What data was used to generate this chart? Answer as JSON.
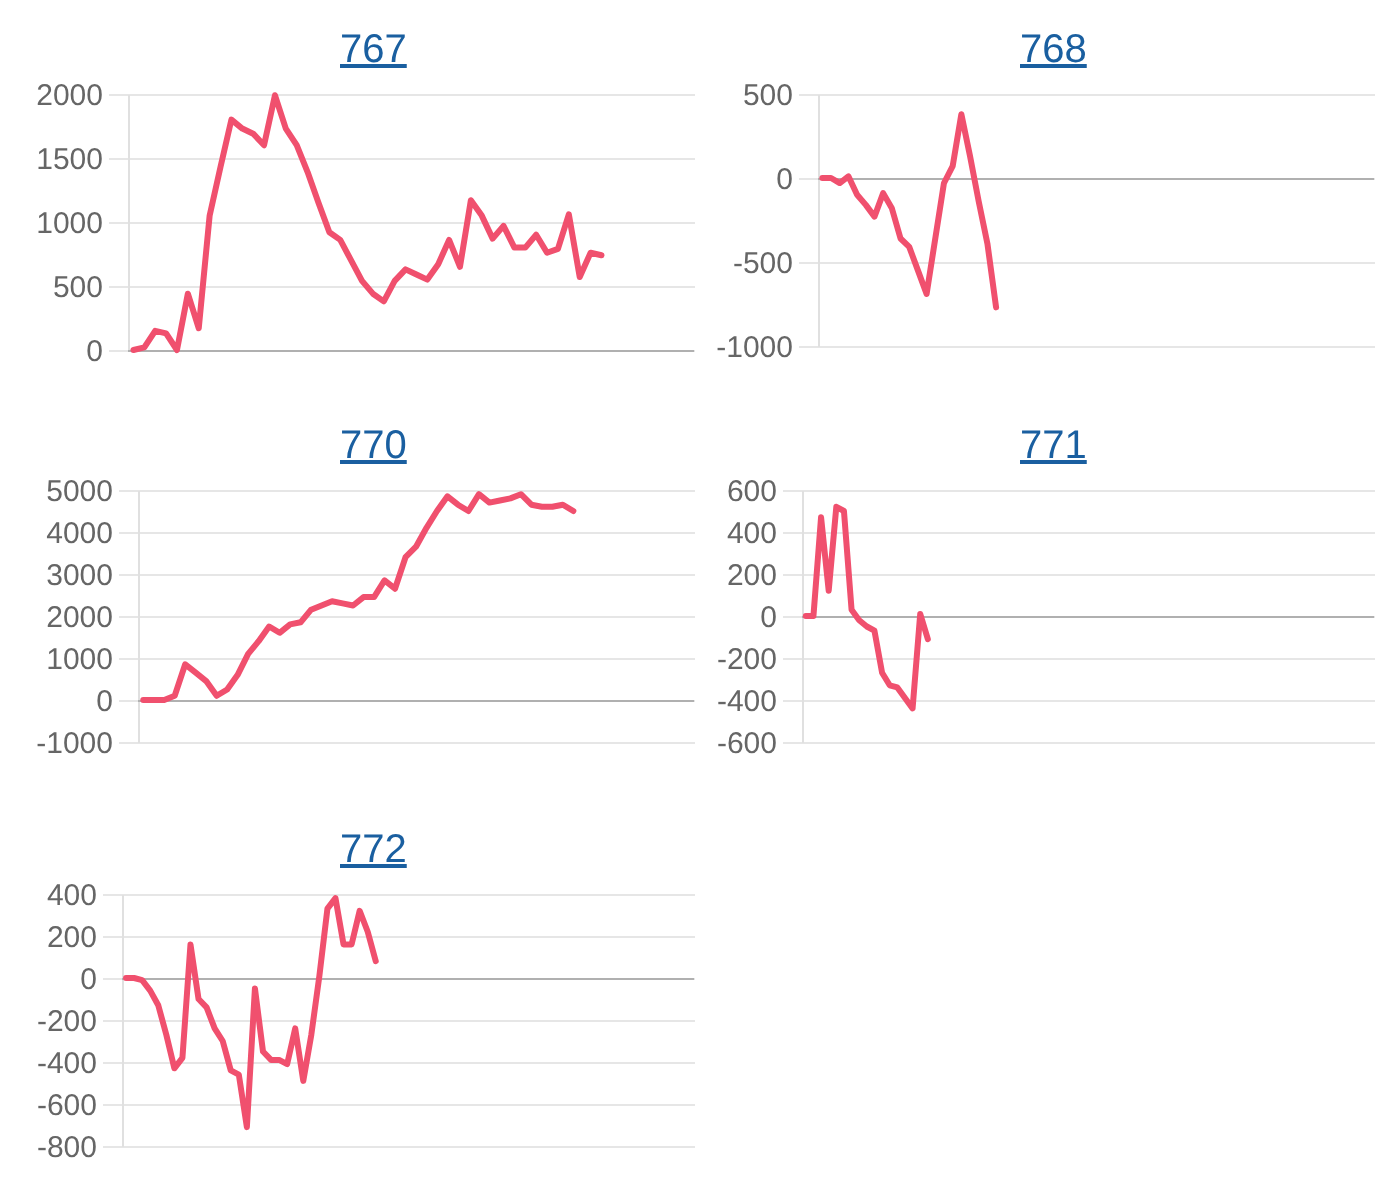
{
  "chart_data": [
    {
      "type": "line",
      "title": "767",
      "color": "#f0506e",
      "grid": "y",
      "tick_labels": "y",
      "ylim": [
        0,
        2000
      ],
      "yticks": [
        0,
        500,
        1000,
        1500,
        2000
      ],
      "ref_lines": [
        {
          "axis": "y",
          "value": 0,
          "color": "#b0b0b0"
        }
      ],
      "categories": [
        null,
        null,
        null,
        null,
        null,
        null,
        null,
        null,
        null,
        null,
        null,
        null,
        null,
        null,
        null,
        null,
        null,
        null,
        null,
        null,
        null,
        null,
        null,
        null,
        null,
        null,
        null,
        null,
        null,
        null,
        null,
        null,
        null,
        null,
        null,
        null,
        null,
        null,
        null,
        null,
        null,
        null,
        null,
        null,
        null,
        null,
        null,
        null,
        null,
        null,
        null,
        null
      ],
      "values": [
        0,
        20,
        150,
        130,
        0,
        440,
        170,
        1050,
        1430,
        1800,
        1730,
        1690,
        1600,
        1990,
        1730,
        1600,
        1390,
        1150,
        920,
        860,
        700,
        540,
        440,
        380,
        540,
        630,
        590,
        550,
        670,
        860,
        650,
        1170,
        1050,
        870,
        970,
        800,
        800,
        900,
        760,
        790,
        1060,
        570,
        760,
        740,
        null,
        null,
        null,
        null,
        null,
        null,
        null,
        null
      ]
    },
    {
      "type": "line",
      "title": "768",
      "color": "#f0506e",
      "grid": "y",
      "tick_labels": "y",
      "ylim": [
        -1000,
        500
      ],
      "yticks": [
        -1000,
        -500,
        0,
        500
      ],
      "ref_lines": [
        {
          "axis": "y",
          "value": 0,
          "color": "#b0b0b0"
        }
      ],
      "categories": [
        null,
        null,
        null,
        null,
        null,
        null,
        null,
        null,
        null,
        null,
        null,
        null,
        null,
        null,
        null,
        null,
        null,
        null,
        null,
        null,
        null,
        null,
        null,
        null,
        null,
        null,
        null,
        null,
        null,
        null,
        null,
        null,
        null,
        null,
        null,
        null,
        null,
        null,
        null,
        null,
        null,
        null,
        null,
        null,
        null,
        null,
        null,
        null,
        null,
        null,
        null,
        null,
        null,
        null,
        null,
        null,
        null,
        null,
        null,
        null,
        null,
        null,
        null,
        null
      ],
      "values": [
        0,
        0,
        -30,
        10,
        -100,
        -160,
        -230,
        -90,
        -180,
        -360,
        -410,
        -550,
        -690,
        -360,
        -30,
        70,
        380,
        130,
        -140,
        -390,
        -770,
        null,
        null,
        null,
        null,
        null,
        null,
        null,
        null,
        null,
        null,
        null,
        null,
        null,
        null,
        null,
        null,
        null,
        null,
        null,
        null,
        null,
        null,
        null,
        null,
        null,
        null,
        null,
        null,
        null,
        null,
        null,
        null,
        null,
        null,
        null,
        null,
        null,
        null,
        null,
        null,
        null,
        null,
        null
      ]
    },
    {
      "type": "line",
      "title": "770",
      "color": "#f0506e",
      "grid": "y",
      "tick_labels": "y",
      "ylim": [
        -1000,
        5000
      ],
      "yticks": [
        -1000,
        0,
        1000,
        2000,
        3000,
        4000,
        5000
      ],
      "ref_lines": [
        {
          "axis": "y",
          "value": 0,
          "color": "#b0b0b0"
        }
      ],
      "categories": [
        null,
        null,
        null,
        null,
        null,
        null,
        null,
        null,
        null,
        null,
        null,
        null,
        null,
        null,
        null,
        null,
        null,
        null,
        null,
        null,
        null,
        null,
        null,
        null,
        null,
        null,
        null,
        null,
        null,
        null,
        null,
        null,
        null,
        null,
        null,
        null,
        null,
        null,
        null,
        null,
        null,
        null,
        null,
        null,
        null,
        null,
        null,
        null,
        null,
        null,
        null,
        null,
        null
      ],
      "values": [
        0,
        0,
        0,
        100,
        850,
        650,
        450,
        100,
        250,
        600,
        1100,
        1400,
        1750,
        1600,
        1800,
        1850,
        2150,
        2250,
        2350,
        2300,
        2250,
        2450,
        2450,
        2850,
        2650,
        3400,
        3650,
        4100,
        4500,
        4850,
        4650,
        4500,
        4900,
        4700,
        4750,
        4800,
        4900,
        4650,
        4600,
        4600,
        4650,
        4500,
        null,
        null,
        null,
        null,
        null,
        null,
        null,
        null,
        null,
        null,
        null
      ]
    },
    {
      "type": "line",
      "title": "771",
      "color": "#f0506e",
      "grid": "y",
      "tick_labels": "y",
      "ylim": [
        -600,
        600
      ],
      "yticks": [
        -600,
        -400,
        -200,
        0,
        200,
        400,
        600
      ],
      "ref_lines": [
        {
          "axis": "y",
          "value": 0,
          "color": "#b0b0b0"
        }
      ],
      "categories": [
        null,
        null,
        null,
        null,
        null,
        null,
        null,
        null,
        null,
        null,
        null,
        null,
        null,
        null,
        null,
        null,
        null,
        null,
        null,
        null,
        null,
        null,
        null,
        null,
        null,
        null,
        null,
        null,
        null,
        null,
        null,
        null,
        null,
        null,
        null,
        null,
        null,
        null,
        null,
        null,
        null,
        null,
        null,
        null,
        null,
        null,
        null,
        null,
        null,
        null,
        null,
        null,
        null,
        null,
        null,
        null,
        null,
        null,
        null,
        null,
        null,
        null,
        null,
        null,
        null,
        null,
        null,
        null,
        null,
        null,
        null,
        null,
        null,
        null,
        null
      ],
      "values": [
        0,
        0,
        470,
        120,
        520,
        500,
        30,
        -20,
        -50,
        -70,
        -270,
        -330,
        -340,
        -390,
        -440,
        10,
        -110,
        null,
        null,
        null,
        null,
        null,
        null,
        null,
        null,
        null,
        null,
        null,
        null,
        null,
        null,
        null,
        null,
        null,
        null,
        null,
        null,
        null,
        null,
        null,
        null,
        null,
        null,
        null,
        null,
        null,
        null,
        null,
        null,
        null,
        null,
        null,
        null,
        null,
        null,
        null,
        null,
        null,
        null,
        null,
        null,
        null,
        null,
        null,
        null,
        null,
        null,
        null,
        null,
        null,
        null,
        null,
        null,
        null,
        null
      ]
    },
    {
      "type": "line",
      "title": "772",
      "color": "#f0506e",
      "grid": "y",
      "tick_labels": "y",
      "ylim": [
        -800,
        400
      ],
      "yticks": [
        -800,
        -600,
        -400,
        -200,
        0,
        200,
        400
      ],
      "ref_lines": [
        {
          "axis": "y",
          "value": 0,
          "color": "#b0b0b0"
        }
      ],
      "categories": [
        null,
        null,
        null,
        null,
        null,
        null,
        null,
        null,
        null,
        null,
        null,
        null,
        null,
        null,
        null,
        null,
        null,
        null,
        null,
        null,
        null,
        null,
        null,
        null,
        null,
        null,
        null,
        null,
        null,
        null,
        null,
        null,
        null,
        null,
        null,
        null,
        null,
        null,
        null,
        null,
        null,
        null,
        null,
        null,
        null,
        null,
        null,
        null,
        null,
        null,
        null,
        null,
        null,
        null,
        null,
        null,
        null,
        null,
        null,
        null,
        null,
        null,
        null,
        null,
        null,
        null,
        null,
        null,
        null,
        null,
        null
      ],
      "values": [
        0,
        0,
        -10,
        -60,
        -130,
        -270,
        -430,
        -380,
        160,
        -100,
        -140,
        -240,
        -300,
        -440,
        -460,
        -710,
        -50,
        -350,
        -390,
        -390,
        -410,
        -240,
        -490,
        -270,
        10,
        330,
        380,
        160,
        160,
        320,
        220,
        80,
        null,
        null,
        null,
        null,
        null,
        null,
        null,
        null,
        null,
        null,
        null,
        null,
        null,
        null,
        null,
        null,
        null,
        null,
        null,
        null,
        null,
        null,
        null,
        null,
        null,
        null,
        null,
        null,
        null,
        null,
        null,
        null,
        null,
        null,
        null,
        null,
        null,
        null,
        null
      ]
    }
  ]
}
